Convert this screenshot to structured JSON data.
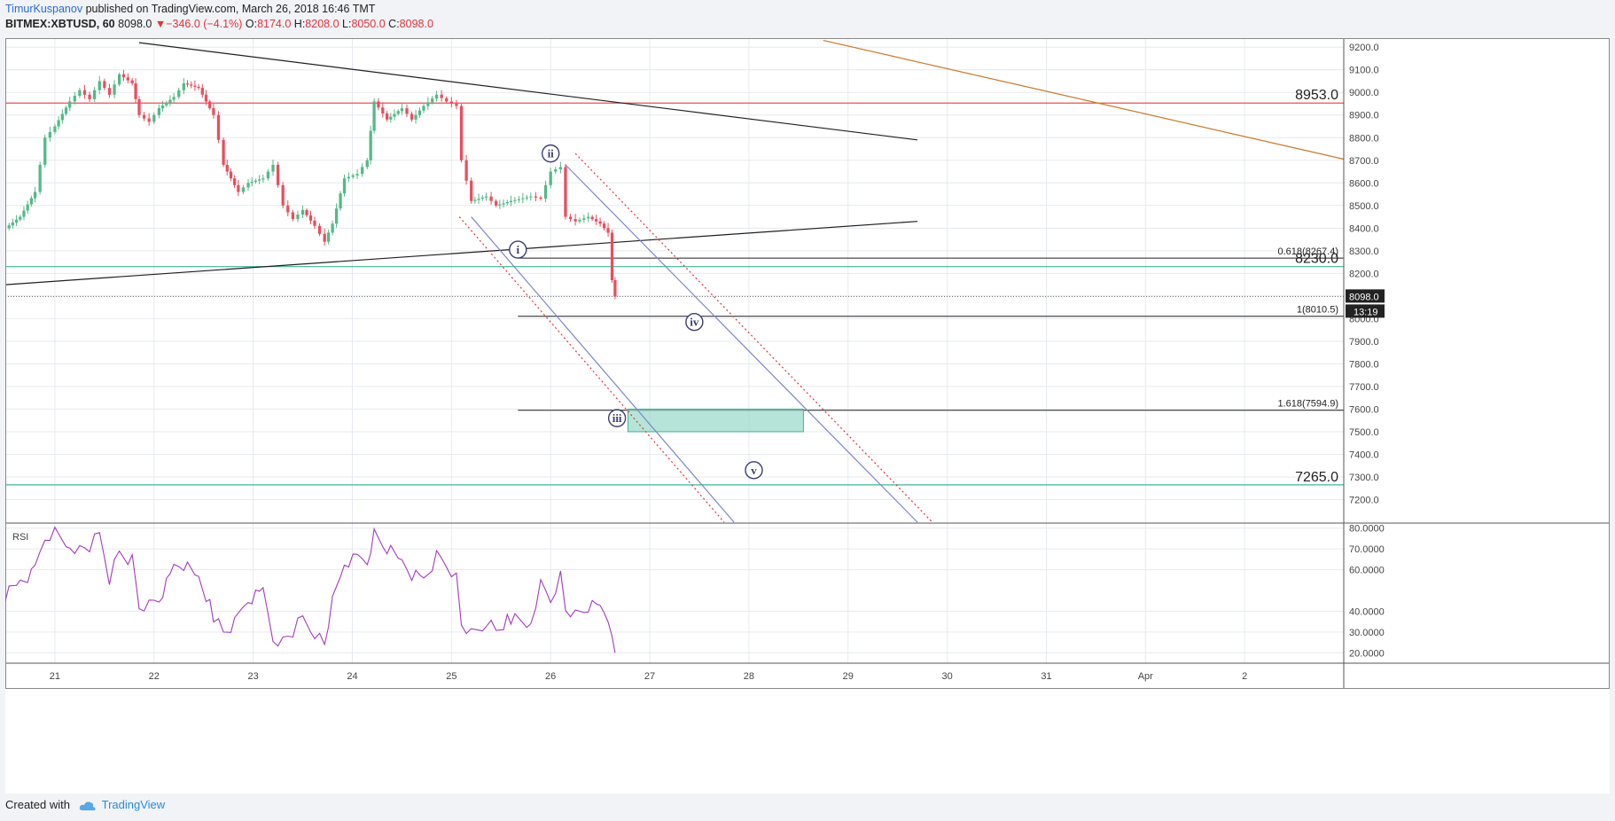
{
  "header": {
    "author": "TimurKuspanov",
    "published_text": "published on TradingView.com, March 26, 2018 16:46 TMT",
    "symbol": "BITMEX:XBTUSD, 60",
    "last": "8098.0",
    "change": "−346.0 (−4.1%)",
    "o_label": "O:",
    "o_value": "8174.0",
    "h_label": "H:",
    "h_value": "8208.0",
    "l_label": "L:",
    "l_value": "8050.0",
    "c_label": "C:",
    "c_value": "8098.0"
  },
  "footer": {
    "created_with": "Created with",
    "brand": "TradingView"
  },
  "colors": {
    "up": "#53b987",
    "down": "#eb4d5c",
    "grid": "#e6eaee",
    "axis_text": "#444444",
    "resistance": "#e8524f",
    "support": "#3db598",
    "trend_orange": "#c87a2c",
    "channel_blue": "#7b86c9",
    "channel_red": "#e0323f",
    "rsi": "#a23bbd",
    "target_zone": "#8fd5c3",
    "wave_label": "#3a3f73"
  },
  "chart_data": {
    "type": "candlestick",
    "symbol": "BITMEX:XBTUSD",
    "interval": "60",
    "ylim": [
      7100,
      9240
    ],
    "y_ticks": [
      7200,
      7300,
      7400,
      7500,
      7600,
      7700,
      7800,
      7900,
      8000,
      8100,
      8200,
      8300,
      8400,
      8500,
      8600,
      8700,
      8800,
      8900,
      9000,
      9100,
      9200
    ],
    "y_tick_labels": [
      "7200.0",
      "7300.0",
      "7400.0",
      "7500.0",
      "7600.0",
      "7700.0",
      "7800.0",
      "7900.0",
      "8000.0",
      "8100.0",
      "8200.0",
      "8300.0",
      "8400.0",
      "8500.0",
      "8600.0",
      "8700.0",
      "8800.0",
      "8900.0",
      "9000.0",
      "9100.0",
      "9200.0"
    ],
    "x_range_days": [
      20.5,
      34.0
    ],
    "x_ticks": [
      {
        "day": 21,
        "label": "21"
      },
      {
        "day": 22,
        "label": "22"
      },
      {
        "day": 23,
        "label": "23"
      },
      {
        "day": 24,
        "label": "24"
      },
      {
        "day": 25,
        "label": "25"
      },
      {
        "day": 26,
        "label": "26"
      },
      {
        "day": 27,
        "label": "27"
      },
      {
        "day": 28,
        "label": "28"
      },
      {
        "day": 29,
        "label": "29"
      },
      {
        "day": 30,
        "label": "30"
      },
      {
        "day": 31,
        "label": "31"
      },
      {
        "day": 32,
        "label": "Apr"
      },
      {
        "day": 33,
        "label": "2"
      }
    ],
    "price_path": [
      [
        20.5,
        8400
      ],
      [
        20.65,
        8450
      ],
      [
        20.8,
        8560
      ],
      [
        20.9,
        8800
      ],
      [
        21.0,
        8850
      ],
      [
        21.15,
        8960
      ],
      [
        21.25,
        9010
      ],
      [
        21.35,
        8970
      ],
      [
        21.45,
        9050
      ],
      [
        21.55,
        8990
      ],
      [
        21.65,
        9080
      ],
      [
        21.78,
        9040
      ],
      [
        21.85,
        8900
      ],
      [
        21.95,
        8870
      ],
      [
        22.05,
        8930
      ],
      [
        22.2,
        8980
      ],
      [
        22.3,
        9040
      ],
      [
        22.45,
        9020
      ],
      [
        22.6,
        8900
      ],
      [
        22.7,
        8680
      ],
      [
        22.85,
        8560
      ],
      [
        22.95,
        8600
      ],
      [
        23.1,
        8620
      ],
      [
        23.2,
        8680
      ],
      [
        23.3,
        8500
      ],
      [
        23.4,
        8440
      ],
      [
        23.5,
        8480
      ],
      [
        23.62,
        8410
      ],
      [
        23.72,
        8340
      ],
      [
        23.8,
        8420
      ],
      [
        23.92,
        8620
      ],
      [
        24.05,
        8640
      ],
      [
        24.15,
        8700
      ],
      [
        24.22,
        8960
      ],
      [
        24.35,
        8880
      ],
      [
        24.5,
        8930
      ],
      [
        24.6,
        8880
      ],
      [
        24.72,
        8940
      ],
      [
        24.85,
        8990
      ],
      [
        24.95,
        8960
      ],
      [
        25.05,
        8940
      ],
      [
        25.1,
        8700
      ],
      [
        25.2,
        8520
      ],
      [
        25.35,
        8540
      ],
      [
        25.45,
        8500
      ],
      [
        25.6,
        8520
      ],
      [
        25.8,
        8540
      ],
      [
        25.9,
        8530
      ],
      [
        26.0,
        8650
      ],
      [
        26.1,
        8670
      ],
      [
        26.15,
        8450
      ],
      [
        26.25,
        8430
      ],
      [
        26.38,
        8450
      ],
      [
        26.5,
        8420
      ],
      [
        26.58,
        8380
      ],
      [
        26.62,
        8170
      ],
      [
        26.65,
        8098
      ]
    ],
    "last_price": 8098.0,
    "last_price_label": "8098.0",
    "countdown_label": "13:19",
    "horizontal_levels": [
      {
        "name": "resistance",
        "price": 8953.0,
        "label": "8953.0",
        "color": "#e8524f"
      },
      {
        "name": "support-upper",
        "price": 8230.0,
        "label": "8230.0",
        "color": "#3db598"
      },
      {
        "name": "support-lower",
        "price": 7265.0,
        "label": "7265.0",
        "color": "#3db598"
      }
    ],
    "fib_levels": [
      {
        "price": 8267.4,
        "label": "0.618(8267.4)"
      },
      {
        "price": 8010.5,
        "label": "1(8010.5)"
      },
      {
        "price": 7594.9,
        "label": "1.618(7594.9)"
      }
    ],
    "fib_start_day": 25.67,
    "trendlines": [
      {
        "name": "upper-triangle-line",
        "from": [
          21.85,
          9220
        ],
        "to": [
          29.7,
          8790
        ],
        "color": "#1f1f1f"
      },
      {
        "name": "lower-triangle-line",
        "from": [
          20.5,
          8150
        ],
        "to": [
          29.7,
          8430
        ],
        "color": "#1f1f1f"
      },
      {
        "name": "orange-trendline",
        "from": [
          28.75,
          9230
        ],
        "to": [
          34.0,
          8705
        ],
        "color": "#c87a2c"
      }
    ],
    "channels": [
      {
        "name": "blue-channel-left",
        "from": [
          25.2,
          8450
        ],
        "to": [
          27.85,
          7100
        ],
        "color": "#7b86c9",
        "style": "solid"
      },
      {
        "name": "blue-channel-right",
        "from": [
          26.15,
          8680
        ],
        "to": [
          29.7,
          7100
        ],
        "color": "#7b86c9",
        "style": "solid"
      },
      {
        "name": "red-channel-left",
        "from": [
          25.08,
          8450
        ],
        "to": [
          27.75,
          7100
        ],
        "color": "#e0323f",
        "style": "dotted"
      },
      {
        "name": "red-channel-right",
        "from": [
          26.25,
          8730
        ],
        "to": [
          29.85,
          7100
        ],
        "color": "#e0323f",
        "style": "dotted"
      }
    ],
    "target_zone": {
      "from_day": 26.78,
      "to_day": 28.55,
      "low": 7500,
      "high": 7600,
      "color": "#8fd5c3"
    },
    "wave_labels": [
      {
        "label": "i",
        "day": 25.67,
        "price": 8305
      },
      {
        "label": "ii",
        "day": 26.0,
        "price": 8730
      },
      {
        "label": "iii",
        "day": 26.67,
        "price": 7560
      },
      {
        "label": "iv",
        "day": 27.45,
        "price": 7985
      },
      {
        "label": "v",
        "day": 28.05,
        "price": 7330
      }
    ],
    "rsi": {
      "label": "RSI",
      "ylim": [
        15,
        82
      ],
      "y_ticks": [
        20,
        30,
        40,
        60,
        70,
        80
      ],
      "y_tick_labels": [
        "20.0000",
        "30.0000",
        "40.0000",
        "60.0000",
        "70.0000",
        "80.0000"
      ],
      "path": [
        [
          20.5,
          48
        ],
        [
          20.65,
          55
        ],
        [
          20.8,
          59
        ],
        [
          20.9,
          75
        ],
        [
          21.0,
          78
        ],
        [
          21.15,
          72
        ],
        [
          21.25,
          70
        ],
        [
          21.35,
          71
        ],
        [
          21.45,
          77
        ],
        [
          21.55,
          56
        ],
        [
          21.65,
          69
        ],
        [
          21.78,
          64
        ],
        [
          21.85,
          42
        ],
        [
          21.95,
          43
        ],
        [
          22.05,
          46
        ],
        [
          22.2,
          61
        ],
        [
          22.3,
          62
        ],
        [
          22.45,
          56
        ],
        [
          22.6,
          38
        ],
        [
          22.7,
          30
        ],
        [
          22.85,
          36
        ],
        [
          22.95,
          45
        ],
        [
          23.1,
          49
        ],
        [
          23.2,
          27
        ],
        [
          23.3,
          26
        ],
        [
          23.4,
          30
        ],
        [
          23.5,
          37
        ],
        [
          23.62,
          30
        ],
        [
          23.72,
          24
        ],
        [
          23.8,
          44
        ],
        [
          23.92,
          63
        ],
        [
          24.05,
          65
        ],
        [
          24.15,
          64
        ],
        [
          24.22,
          78
        ],
        [
          24.35,
          70
        ],
        [
          24.5,
          64
        ],
        [
          24.6,
          58
        ],
        [
          24.72,
          56
        ],
        [
          24.85,
          66
        ],
        [
          24.95,
          62
        ],
        [
          25.05,
          56
        ],
        [
          25.1,
          35
        ],
        [
          25.2,
          30
        ],
        [
          25.35,
          35
        ],
        [
          25.45,
          30
        ],
        [
          25.6,
          37
        ],
        [
          25.8,
          34
        ],
        [
          25.9,
          52
        ],
        [
          26.0,
          45
        ],
        [
          26.1,
          57
        ],
        [
          26.15,
          42
        ],
        [
          26.25,
          39
        ],
        [
          26.38,
          42
        ],
        [
          26.5,
          42
        ],
        [
          26.58,
          38
        ],
        [
          26.62,
          28
        ],
        [
          26.65,
          20
        ]
      ]
    }
  }
}
